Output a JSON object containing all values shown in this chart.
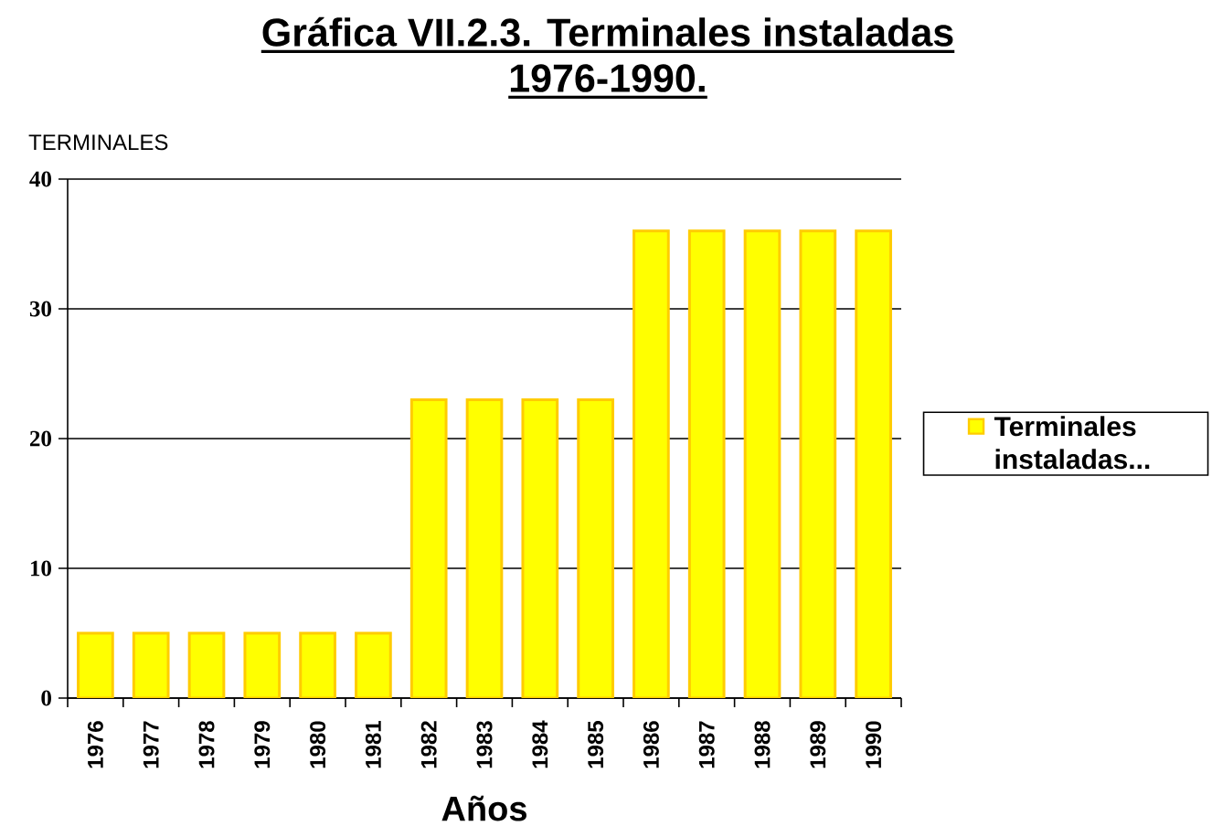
{
  "chart_data": {
    "type": "bar",
    "title": "Gráfica VII.2.3. Terminales instaladas 1976-1990.",
    "xlabel": "Años",
    "ylabel": "TERMINALES",
    "categories": [
      "1976",
      "1977",
      "1978",
      "1979",
      "1980",
      "1981",
      "1982",
      "1983",
      "1984",
      "1985",
      "1986",
      "1987",
      "1988",
      "1989",
      "1990"
    ],
    "series": [
      {
        "name": "Terminales instaladas...",
        "color": "#ffff00",
        "values": [
          5,
          5,
          5,
          5,
          5,
          5,
          23,
          23,
          23,
          23,
          36,
          36,
          36,
          36,
          36
        ]
      }
    ],
    "ylim": [
      0,
      40
    ],
    "yticks": [
      0,
      10,
      20,
      30,
      40
    ],
    "grid": "y",
    "legend": "right"
  }
}
